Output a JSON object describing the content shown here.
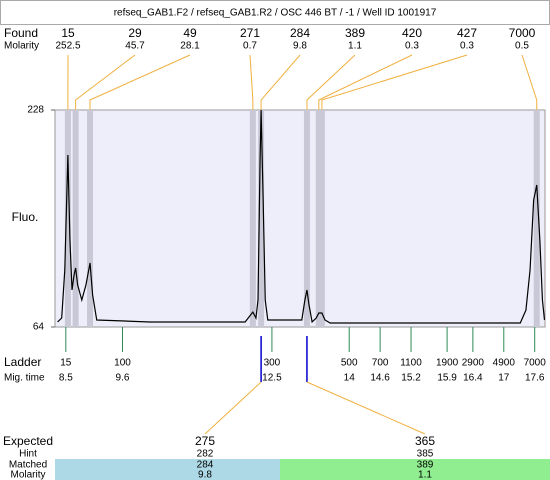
{
  "chart_data": {
    "type": "line",
    "title": "refseq_GAB1.F2 / refseq_GAB1.R2 / OSC 446 BT / -1 / Well ID 1001917",
    "y_label": "Fluo.",
    "ylim": [
      64,
      228
    ],
    "yticks": [
      64,
      228
    ],
    "xlim": [
      8.29,
      17.8
    ],
    "x": [
      8.34,
      8.42,
      8.48,
      8.54,
      8.58,
      8.62,
      8.66,
      8.69,
      8.73,
      8.81,
      8.89,
      8.97,
      9.02,
      9.1,
      10.13,
      11.98,
      12.07,
      12.13,
      12.19,
      12.23,
      12.27,
      12.29,
      12.33,
      12.37,
      12.42,
      13.08,
      13.14,
      13.18,
      13.22,
      13.28,
      13.36,
      13.41,
      13.47,
      13.53,
      13.63,
      17.32,
      17.43,
      17.51,
      17.58,
      17.64,
      17.7,
      17.75,
      17.79
    ],
    "values": [
      67.8,
      70.8,
      107.1,
      194.0,
      129.7,
      92.0,
      103.3,
      108.6,
      95.7,
      84.4,
      95.7,
      112.4,
      88.2,
      69.3,
      67.8,
      67.8,
      72.3,
      75.3,
      70.8,
      84.4,
      190.2,
      228,
      160.0,
      84.4,
      69.3,
      69.3,
      84.4,
      92.0,
      80.6,
      67.8,
      70.8,
      74.6,
      74.6,
      69.3,
      67.0,
      67.0,
      76.8,
      107.1,
      160.0,
      171.3,
      129.7,
      84.4,
      69.3
    ],
    "found": {
      "label": "Found",
      "molarity_label": "Molarity",
      "sizes": [
        15,
        29,
        49,
        271,
        284,
        389,
        420,
        427,
        7000
      ],
      "molarity": [
        252.5,
        45.7,
        28.1,
        0.7,
        9.8,
        1.1,
        0.3,
        0.3,
        0.5
      ],
      "times": [
        8.54,
        8.69,
        8.97,
        12.13,
        12.29,
        13.18,
        13.41,
        13.47,
        17.64
      ]
    },
    "ladder": {
      "label": "Ladder",
      "time_label": "Mig. time",
      "sizes": [
        15,
        100,
        300,
        500,
        700,
        1100,
        1900,
        2900,
        4900,
        7000
      ],
      "times": [
        8.5,
        9.6,
        12.5,
        14,
        14.6,
        15.2,
        15.9,
        16.4,
        17,
        17.6
      ]
    },
    "expected": {
      "label": "Expected",
      "hint_label": "Hint",
      "matched_label": "Matched",
      "molarity_label": "Molarity",
      "values": [
        275,
        365
      ],
      "hint": [
        282,
        385
      ],
      "matched": [
        284,
        389
      ],
      "molarity": [
        9.8,
        1.1
      ]
    }
  }
}
